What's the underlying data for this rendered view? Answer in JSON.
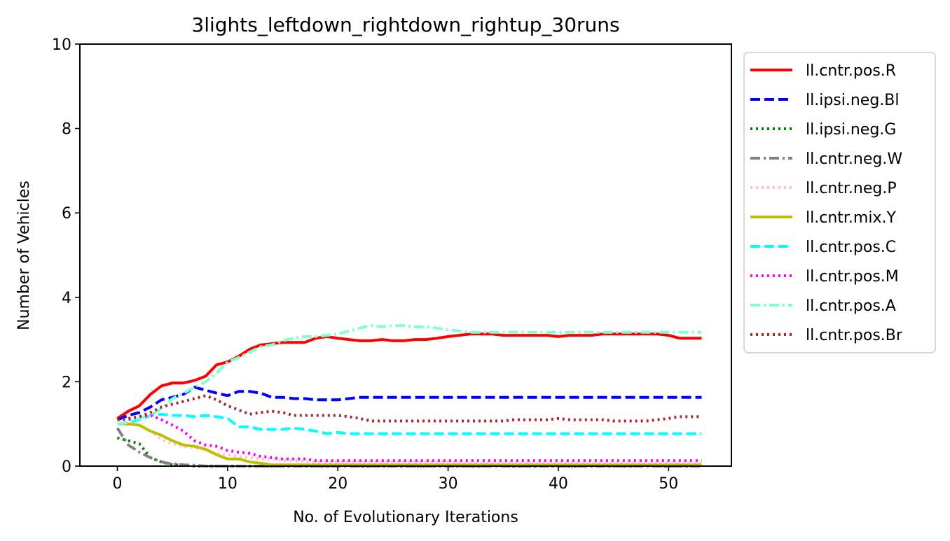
{
  "chart_data": {
    "type": "line",
    "title": "3lights_leftdown_rightdown_rightup_30runs",
    "xlabel": "No. of Evolutionary Iterations",
    "ylabel": "Number of Vehicles",
    "xlim": [
      -3.4,
      55.7
    ],
    "ylim": [
      0,
      10
    ],
    "xticks": [
      0,
      10,
      20,
      30,
      40,
      50
    ],
    "yticks": [
      0,
      2,
      4,
      6,
      8,
      10
    ],
    "legend_position": "outside-upper-right",
    "grid": false,
    "series": [
      {
        "name": "ll.cntr.pos.R",
        "color": "#ff0000",
        "dash": "solid",
        "x": [
          0,
          1,
          2,
          3,
          4,
          5,
          6,
          7,
          8,
          9,
          10,
          11,
          12,
          13,
          14,
          15,
          16,
          17,
          18,
          19,
          20,
          21,
          22,
          23,
          24,
          25,
          26,
          27,
          28,
          29,
          30,
          31,
          32,
          33,
          34,
          35,
          36,
          37,
          38,
          39,
          40,
          41,
          42,
          43,
          44,
          45,
          46,
          47,
          48,
          49,
          50,
          51,
          52,
          53
        ],
        "y": [
          1.13,
          1.3,
          1.43,
          1.7,
          1.9,
          1.97,
          1.97,
          2.03,
          2.13,
          2.4,
          2.47,
          2.6,
          2.77,
          2.87,
          2.9,
          2.93,
          2.93,
          2.93,
          3.03,
          3.07,
          3.03,
          3.0,
          2.97,
          2.97,
          3.0,
          2.97,
          2.97,
          3.0,
          3.0,
          3.03,
          3.07,
          3.1,
          3.13,
          3.13,
          3.13,
          3.1,
          3.1,
          3.1,
          3.1,
          3.1,
          3.07,
          3.1,
          3.1,
          3.1,
          3.13,
          3.13,
          3.13,
          3.13,
          3.13,
          3.13,
          3.1,
          3.03,
          3.03,
          3.03
        ]
      },
      {
        "name": "ll.ipsi.neg.Bl",
        "color": "#0000ff",
        "dash": "dashed",
        "x": [
          0,
          1,
          2,
          3,
          4,
          5,
          6,
          7,
          8,
          9,
          10,
          11,
          12,
          13,
          14,
          15,
          16,
          17,
          18,
          19,
          20,
          21,
          22,
          23,
          24,
          25,
          26,
          27,
          28,
          29,
          30,
          31,
          32,
          33,
          34,
          35,
          36,
          37,
          38,
          39,
          40,
          41,
          42,
          43,
          44,
          45,
          46,
          47,
          48,
          49,
          50,
          51,
          52,
          53
        ],
        "y": [
          1.1,
          1.2,
          1.27,
          1.4,
          1.57,
          1.63,
          1.7,
          1.87,
          1.8,
          1.73,
          1.67,
          1.77,
          1.77,
          1.73,
          1.63,
          1.63,
          1.6,
          1.6,
          1.57,
          1.57,
          1.57,
          1.6,
          1.63,
          1.63,
          1.63,
          1.63,
          1.63,
          1.63,
          1.63,
          1.63,
          1.63,
          1.63,
          1.63,
          1.63,
          1.63,
          1.63,
          1.63,
          1.63,
          1.63,
          1.63,
          1.63,
          1.63,
          1.63,
          1.63,
          1.63,
          1.63,
          1.63,
          1.63,
          1.63,
          1.63,
          1.63,
          1.63,
          1.63,
          1.63
        ]
      },
      {
        "name": "ll.ipsi.neg.G",
        "color": "#008000",
        "dash": "dotted",
        "x": [
          0,
          1,
          2,
          3,
          4,
          5,
          6,
          7,
          8,
          9,
          10,
          11,
          12,
          13,
          14,
          15,
          16,
          17,
          18,
          19,
          20,
          21,
          22,
          23,
          24,
          25,
          26,
          27,
          28,
          29,
          30,
          31,
          32,
          33,
          34,
          35,
          36,
          37,
          38,
          39,
          40,
          41,
          42,
          43,
          44,
          45,
          46,
          47,
          48,
          49,
          50,
          51,
          52,
          53
        ],
        "y": [
          0.67,
          0.6,
          0.53,
          0.2,
          0.1,
          0.03,
          0.03,
          0,
          0,
          0,
          0,
          0,
          0,
          0,
          0,
          0,
          0,
          0,
          0,
          0,
          0,
          0,
          0,
          0,
          0,
          0,
          0,
          0,
          0,
          0,
          0,
          0,
          0,
          0,
          0,
          0,
          0,
          0,
          0,
          0,
          0,
          0,
          0,
          0,
          0,
          0,
          0,
          0,
          0,
          0,
          0,
          0,
          0,
          0
        ]
      },
      {
        "name": "ll.cntr.neg.W",
        "color": "#808080",
        "dash": "dashdot",
        "x": [
          0,
          1,
          2,
          3,
          4,
          5,
          6,
          7,
          8,
          9,
          10,
          11,
          12,
          13,
          14,
          15,
          16,
          17,
          18,
          19,
          20,
          21,
          22,
          23,
          24,
          25,
          26,
          27,
          28,
          29,
          30,
          31,
          32,
          33,
          34,
          35,
          36,
          37,
          38,
          39,
          40,
          41,
          42,
          43,
          44,
          45,
          46,
          47,
          48,
          49,
          50,
          51,
          52,
          53
        ],
        "y": [
          0.9,
          0.5,
          0.33,
          0.2,
          0.1,
          0.05,
          0.03,
          0.02,
          0,
          0,
          0,
          0,
          0,
          0,
          0,
          0,
          0,
          0,
          0,
          0,
          0,
          0,
          0,
          0,
          0,
          0,
          0,
          0,
          0,
          0,
          0,
          0,
          0,
          0,
          0,
          0,
          0,
          0,
          0,
          0,
          0,
          0,
          0,
          0,
          0,
          0,
          0,
          0,
          0,
          0,
          0,
          0,
          0,
          0
        ]
      },
      {
        "name": "ll.cntr.neg.P",
        "color": "#ffc0cb",
        "dash": "dotted",
        "x": [
          0,
          1,
          2,
          3,
          4,
          5,
          6,
          7,
          8,
          9,
          10,
          11,
          12,
          13,
          14,
          15,
          16,
          17,
          18,
          19,
          20,
          21,
          22,
          23,
          24,
          25,
          26,
          27,
          28,
          29,
          30,
          31,
          32,
          33,
          34,
          35,
          36,
          37,
          38,
          39,
          40,
          41,
          42,
          43,
          44,
          45,
          46,
          47,
          48,
          49,
          50,
          51,
          52,
          53
        ],
        "y": [
          1.0,
          1.0,
          0.97,
          0.83,
          0.63,
          0.53,
          0.47,
          0.43,
          0.4,
          0.3,
          0.27,
          0.23,
          0.2,
          0.17,
          0.17,
          0.13,
          0.13,
          0.1,
          0.1,
          0.1,
          0.1,
          0.1,
          0.1,
          0.1,
          0.1,
          0.1,
          0.1,
          0.1,
          0.1,
          0.1,
          0.1,
          0.07,
          0.07,
          0.07,
          0.07,
          0.07,
          0.07,
          0.07,
          0.07,
          0.07,
          0.07,
          0.07,
          0.07,
          0.07,
          0.07,
          0.07,
          0.07,
          0.07,
          0.07,
          0.07,
          0.07,
          0.07,
          0.07,
          0.07
        ]
      },
      {
        "name": "ll.cntr.mix.Y",
        "color": "#bfbf00",
        "dash": "solid",
        "x": [
          0,
          1,
          2,
          3,
          4,
          5,
          6,
          7,
          8,
          9,
          10,
          11,
          12,
          13,
          14,
          15,
          16,
          17,
          18,
          19,
          20,
          21,
          22,
          23,
          24,
          25,
          26,
          27,
          28,
          29,
          30,
          31,
          32,
          33,
          34,
          35,
          36,
          37,
          38,
          39,
          40,
          41,
          42,
          43,
          44,
          45,
          46,
          47,
          48,
          49,
          50,
          51,
          52,
          53
        ],
        "y": [
          1.0,
          1.0,
          0.97,
          0.83,
          0.73,
          0.6,
          0.5,
          0.47,
          0.4,
          0.27,
          0.17,
          0.17,
          0.1,
          0.07,
          0.03,
          0.03,
          0.03,
          0.03,
          0.03,
          0.03,
          0.03,
          0.03,
          0.03,
          0.03,
          0.03,
          0.03,
          0.03,
          0.03,
          0.03,
          0.03,
          0.03,
          0.03,
          0.03,
          0.03,
          0.03,
          0.03,
          0.03,
          0.03,
          0.03,
          0.03,
          0.03,
          0.03,
          0.03,
          0.03,
          0.03,
          0.03,
          0.03,
          0.03,
          0.03,
          0.03,
          0.03,
          0.03,
          0.03,
          0.03
        ]
      },
      {
        "name": "ll.cntr.pos.C",
        "color": "#00ffff",
        "dash": "dashed",
        "x": [
          0,
          1,
          2,
          3,
          4,
          5,
          6,
          7,
          8,
          9,
          10,
          11,
          12,
          13,
          14,
          15,
          16,
          17,
          18,
          19,
          20,
          21,
          22,
          23,
          24,
          25,
          26,
          27,
          28,
          29,
          30,
          31,
          32,
          33,
          34,
          35,
          36,
          37,
          38,
          39,
          40,
          41,
          42,
          43,
          44,
          45,
          46,
          47,
          48,
          49,
          50,
          51,
          52,
          53
        ],
        "y": [
          1.0,
          1.03,
          1.1,
          1.2,
          1.23,
          1.2,
          1.2,
          1.17,
          1.2,
          1.17,
          1.13,
          0.93,
          0.93,
          0.87,
          0.87,
          0.87,
          0.9,
          0.87,
          0.83,
          0.77,
          0.8,
          0.77,
          0.77,
          0.77,
          0.77,
          0.77,
          0.77,
          0.77,
          0.77,
          0.77,
          0.77,
          0.77,
          0.77,
          0.77,
          0.77,
          0.77,
          0.77,
          0.77,
          0.77,
          0.77,
          0.77,
          0.77,
          0.77,
          0.77,
          0.77,
          0.77,
          0.77,
          0.77,
          0.77,
          0.77,
          0.77,
          0.77,
          0.77,
          0.77
        ]
      },
      {
        "name": "ll.cntr.pos.M",
        "color": "#ff00ff",
        "dash": "dotted",
        "x": [
          0,
          1,
          2,
          3,
          4,
          5,
          6,
          7,
          8,
          9,
          10,
          11,
          12,
          13,
          14,
          15,
          16,
          17,
          18,
          19,
          20,
          21,
          22,
          23,
          24,
          25,
          26,
          27,
          28,
          29,
          30,
          31,
          32,
          33,
          34,
          35,
          36,
          37,
          38,
          39,
          40,
          41,
          42,
          43,
          44,
          45,
          46,
          47,
          48,
          49,
          50,
          51,
          52,
          53
        ],
        "y": [
          1.1,
          1.1,
          1.17,
          1.2,
          1.1,
          0.97,
          0.83,
          0.6,
          0.5,
          0.47,
          0.37,
          0.33,
          0.3,
          0.23,
          0.2,
          0.17,
          0.17,
          0.17,
          0.13,
          0.13,
          0.13,
          0.13,
          0.13,
          0.13,
          0.13,
          0.13,
          0.13,
          0.13,
          0.13,
          0.13,
          0.13,
          0.13,
          0.13,
          0.13,
          0.13,
          0.13,
          0.13,
          0.13,
          0.13,
          0.13,
          0.13,
          0.13,
          0.13,
          0.13,
          0.13,
          0.13,
          0.13,
          0.13,
          0.13,
          0.13,
          0.13,
          0.13,
          0.13,
          0.13
        ]
      },
      {
        "name": "ll.cntr.pos.A",
        "color": "#7fffd4",
        "dash": "dashdot",
        "x": [
          0,
          1,
          2,
          3,
          4,
          5,
          6,
          7,
          8,
          9,
          10,
          11,
          12,
          13,
          14,
          15,
          16,
          17,
          18,
          19,
          20,
          21,
          22,
          23,
          24,
          25,
          26,
          27,
          28,
          29,
          30,
          31,
          32,
          33,
          34,
          35,
          36,
          37,
          38,
          39,
          40,
          41,
          42,
          43,
          44,
          45,
          46,
          47,
          48,
          49,
          50,
          51,
          52,
          53
        ],
        "y": [
          1.0,
          1.03,
          1.13,
          1.2,
          1.37,
          1.6,
          1.73,
          1.87,
          2.0,
          2.2,
          2.47,
          2.57,
          2.7,
          2.83,
          2.87,
          2.97,
          3.03,
          3.07,
          3.07,
          3.1,
          3.13,
          3.2,
          3.27,
          3.33,
          3.3,
          3.33,
          3.33,
          3.3,
          3.3,
          3.27,
          3.23,
          3.2,
          3.17,
          3.17,
          3.17,
          3.17,
          3.17,
          3.17,
          3.17,
          3.17,
          3.17,
          3.17,
          3.17,
          3.17,
          3.17,
          3.17,
          3.17,
          3.17,
          3.17,
          3.17,
          3.17,
          3.17,
          3.17,
          3.17
        ]
      },
      {
        "name": "ll.cntr.pos.Br",
        "color": "#a52a2a",
        "dash": "dotted",
        "x": [
          0,
          1,
          2,
          3,
          4,
          5,
          6,
          7,
          8,
          9,
          10,
          11,
          12,
          13,
          14,
          15,
          16,
          17,
          18,
          19,
          20,
          21,
          22,
          23,
          24,
          25,
          26,
          27,
          28,
          29,
          30,
          31,
          32,
          33,
          34,
          35,
          36,
          37,
          38,
          39,
          40,
          41,
          42,
          43,
          44,
          45,
          46,
          47,
          48,
          49,
          50,
          51,
          52,
          53
        ],
        "y": [
          1.1,
          1.13,
          1.17,
          1.27,
          1.4,
          1.47,
          1.53,
          1.6,
          1.67,
          1.57,
          1.43,
          1.33,
          1.23,
          1.27,
          1.3,
          1.27,
          1.2,
          1.2,
          1.2,
          1.2,
          1.2,
          1.17,
          1.13,
          1.07,
          1.07,
          1.07,
          1.07,
          1.07,
          1.07,
          1.07,
          1.07,
          1.07,
          1.07,
          1.07,
          1.07,
          1.07,
          1.1,
          1.1,
          1.1,
          1.1,
          1.13,
          1.1,
          1.1,
          1.1,
          1.1,
          1.07,
          1.07,
          1.07,
          1.07,
          1.1,
          1.13,
          1.17,
          1.17,
          1.17
        ]
      }
    ]
  }
}
